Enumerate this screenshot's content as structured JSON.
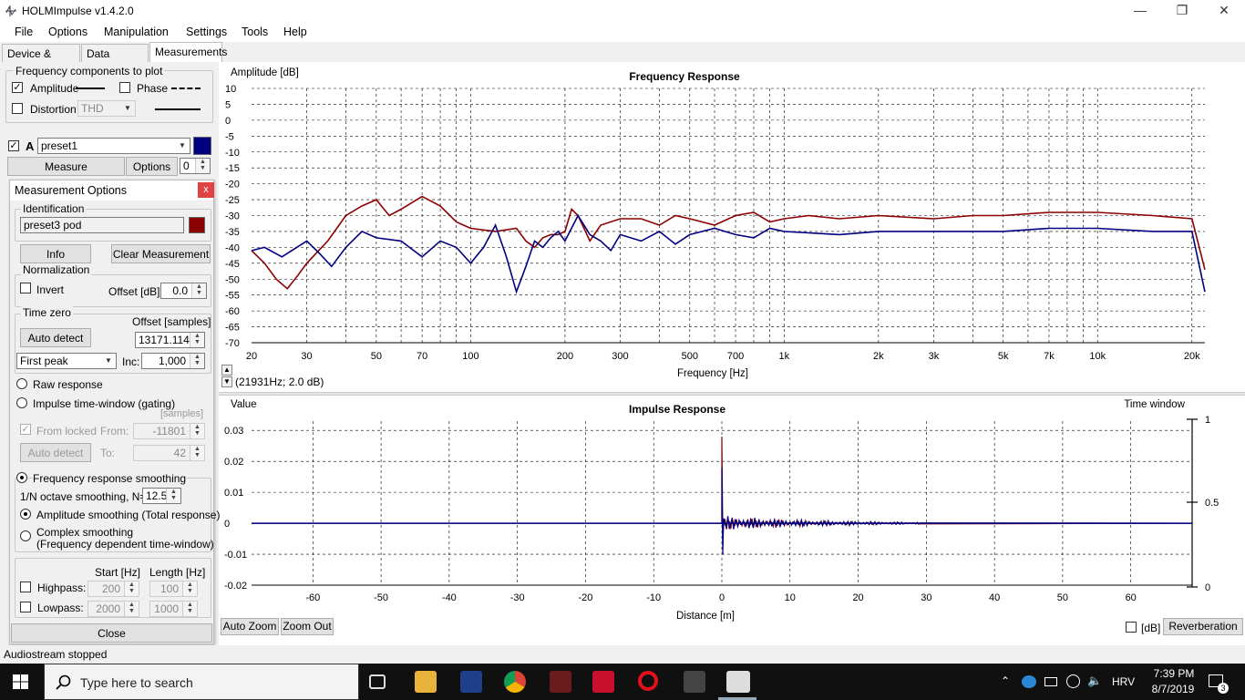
{
  "app": {
    "title": "HOLMImpulse  v1.4.2.0"
  },
  "window_controls": {
    "minimize": "—",
    "restore": "❐",
    "close": "✕"
  },
  "menu": [
    "File",
    "Options",
    "Manipulation",
    "Settings",
    "Tools",
    "Help"
  ],
  "tabs": [
    "Device & Signal",
    "Data analysis",
    "Measurements"
  ],
  "components": {
    "title": "Frequency components to plot",
    "amplitude": "Amplitude",
    "amplitude_checked": true,
    "phase": "Phase",
    "phase_checked": false,
    "distortion": "Distortion",
    "distortion_checked": false,
    "distortion_type": "THD"
  },
  "measurement_a": {
    "letter": "A",
    "checked": true,
    "preset": "preset1",
    "color": "#000080",
    "measure_label": "Measure",
    "options_label": "Options",
    "counter": "0"
  },
  "dialog": {
    "title": "Measurement Options",
    "close": "x",
    "identification": {
      "title": "Identification",
      "name": "preset3 pod",
      "color": "#8b0000"
    },
    "info_label": "Info",
    "clear_label": "Clear Measurement",
    "normalization": {
      "title": "Normalization",
      "invert": "Invert",
      "offset_label": "Offset [dB]:",
      "offset": "0.0"
    },
    "time_zero": {
      "title": "Time zero",
      "offset_header": "Offset [samples]",
      "auto_detect": "Auto detect",
      "offset": "13171.114",
      "method": "First peak",
      "inc_label": "Inc:",
      "inc": "1,000"
    },
    "raw_response": "Raw response",
    "impulse_window": "Impulse time-window (gating)",
    "samples_label": "[samples]",
    "from_locked": "From locked",
    "from_label": "From:",
    "from_value": "-11801",
    "auto_detect2": "Auto detect",
    "to_label": "To:",
    "to_value": "42",
    "smoothing": {
      "title": "Frequency response smoothing",
      "n_label": "1/N octave smoothing, N=",
      "n_value": "12.5",
      "amplitude": "Amplitude smoothing (Total response)",
      "complex_1": "Complex smoothing",
      "complex_2": "(Frequency dependent time-window)"
    },
    "filters": {
      "start_header": "Start [Hz]",
      "length_header": "Length [Hz]",
      "highpass": "Highpass:",
      "hp_start": "200",
      "hp_length": "100",
      "lowpass": "Lowpass:",
      "lp_start": "2000",
      "lp_length": "1000"
    },
    "close_label": "Close"
  },
  "cursor_readout": "(21931Hz; 2.0 dB)",
  "chart_data": [
    {
      "type": "line",
      "title": "Frequency Response",
      "xlabel": "Frequency [Hz]",
      "ylabel": "Amplitude [dB]",
      "xscale": "log",
      "xlim": [
        20,
        22000
      ],
      "ylim": [
        -70,
        10
      ],
      "grid": true,
      "x_ticks": [
        20,
        30,
        50,
        70,
        100,
        200,
        300,
        500,
        700,
        1000,
        2000,
        3000,
        5000,
        7000,
        10000,
        20000
      ],
      "x_tick_labels": [
        "20",
        "30",
        "50",
        "70",
        "100",
        "200",
        "300",
        "500",
        "700",
        "1k",
        "2k",
        "3k",
        "5k",
        "7k",
        "10k",
        "20k"
      ],
      "y_ticks": [
        10,
        5,
        0,
        -5,
        -10,
        -15,
        -20,
        -25,
        -30,
        -35,
        -40,
        -45,
        -50,
        -55,
        -60,
        -65,
        -70
      ],
      "series": [
        {
          "color": "#8b0000",
          "x": [
            20,
            22,
            24,
            26,
            28,
            30,
            35,
            40,
            45,
            50,
            55,
            60,
            70,
            80,
            90,
            100,
            120,
            140,
            150,
            160,
            170,
            180,
            190,
            200,
            210,
            220,
            240,
            260,
            300,
            350,
            400,
            450,
            500,
            600,
            700,
            800,
            900,
            1000,
            1200,
            1500,
            2000,
            3000,
            4000,
            5000,
            7000,
            10000,
            15000,
            20000,
            22000
          ],
          "y": [
            -41,
            -45,
            -50,
            -53,
            -49,
            -45,
            -38,
            -30,
            -27,
            -25,
            -30,
            -28,
            -24,
            -27,
            -32,
            -34,
            -35,
            -34,
            -38,
            -40,
            -37,
            -36,
            -36,
            -35,
            -28,
            -30,
            -38,
            -33,
            -31,
            -31,
            -33,
            -30,
            -31,
            -33,
            -30,
            -29,
            -32,
            -31,
            -30,
            -31,
            -30,
            -31,
            -30,
            -30,
            -29,
            -29,
            -30,
            -31,
            -47
          ]
        },
        {
          "color": "#000080",
          "x": [
            20,
            22,
            25,
            30,
            33,
            36,
            40,
            45,
            50,
            60,
            70,
            80,
            90,
            100,
            110,
            120,
            130,
            140,
            150,
            160,
            170,
            180,
            190,
            200,
            220,
            240,
            260,
            280,
            300,
            350,
            400,
            450,
            500,
            600,
            700,
            800,
            900,
            1000,
            1500,
            2000,
            3000,
            5000,
            7000,
            10000,
            15000,
            20000,
            22000
          ],
          "y": [
            -41,
            -40,
            -43,
            -38,
            -42,
            -46,
            -40,
            -35,
            -37,
            -38,
            -43,
            -38,
            -40,
            -45,
            -40,
            -33,
            -43,
            -54,
            -46,
            -38,
            -40,
            -37,
            -35,
            -38,
            -30,
            -36,
            -38,
            -41,
            -36,
            -38,
            -35,
            -39,
            -36,
            -34,
            -36,
            -37,
            -34,
            -35,
            -36,
            -35,
            -35,
            -35,
            -34,
            -34,
            -35,
            -35,
            -54
          ]
        }
      ]
    },
    {
      "type": "line",
      "title": "Impulse Response",
      "xlabel": "Distance [m]",
      "ylabel": "Value",
      "xlim": [
        -69,
        69
      ],
      "ylim": [
        -0.02,
        0.033
      ],
      "grid": true,
      "x_ticks": [
        -60,
        -50,
        -40,
        -30,
        -20,
        -10,
        0,
        10,
        20,
        30,
        40,
        50,
        60
      ],
      "y_ticks": [
        0.03,
        0.02,
        0.01,
        0,
        -0.01,
        -0.02
      ],
      "right_axis_label": "Time window",
      "right_ticks": [
        "1",
        "0.5",
        "0"
      ],
      "series": [
        {
          "color": "#8b0000",
          "peak": 0.028,
          "trough": -0.004
        },
        {
          "color": "#000080",
          "peak": 0.018,
          "trough": -0.01
        }
      ]
    }
  ],
  "fr_readout_hint": "",
  "bottom_buttons": {
    "auto_zoom": "Auto Zoom",
    "zoom_out": "Zoom Out",
    "db": "[dB]",
    "reverberation": "Reverberation"
  },
  "status": "Audiostream stopped",
  "taskbar": {
    "search": "Type here to search",
    "language": "HRV",
    "time": "7:39 PM",
    "date": "8/7/2019",
    "notifications": "3"
  }
}
